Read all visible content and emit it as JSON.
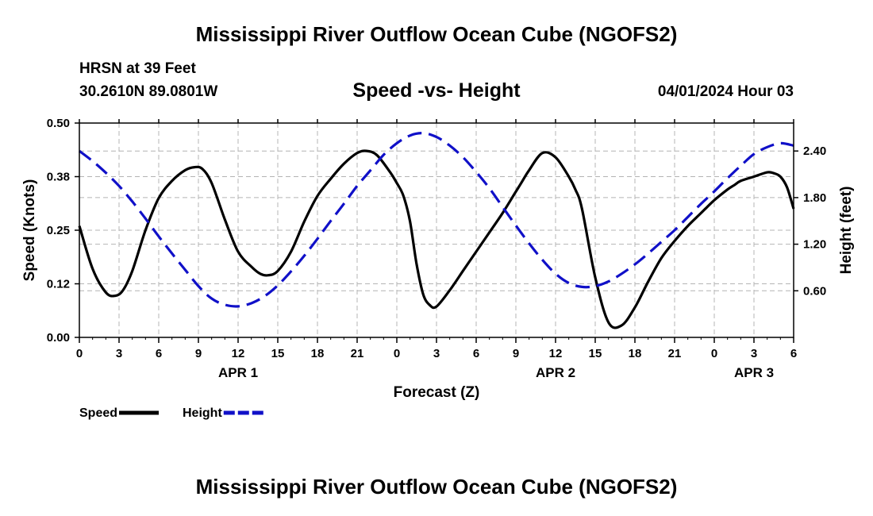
{
  "title": "Mississippi River Outflow Ocean Cube (NGOFS2)",
  "title_repeat": "Mississippi River Outflow Ocean Cube (NGOFS2)",
  "station": "HRSN at 39 Feet",
  "coordinates": "30.2610N  89.0801W",
  "subtitle": "Speed -vs- Height",
  "datetime": "04/01/2024 Hour 03",
  "colors": {
    "speed": "#000000",
    "height": "#1010c8",
    "grid": "#b4b4b4"
  },
  "chart_data": {
    "type": "line",
    "title": "Speed -vs- Height",
    "xlabel": "Forecast (Z)",
    "ylabel": "Speed (Knots)",
    "y2label": "Height (feet)",
    "xlim": [
      0,
      54
    ],
    "ylim": [
      0,
      0.5
    ],
    "y2lim": [
      0.0,
      2.76
    ],
    "x_ticks": [
      0,
      3,
      6,
      9,
      12,
      15,
      18,
      21,
      24,
      27,
      30,
      33,
      36,
      39,
      42,
      45,
      48,
      51,
      54
    ],
    "x_tick_labels": [
      "0",
      "3",
      "6",
      "9",
      "12",
      "15",
      "18",
      "21",
      "0",
      "3",
      "6",
      "9",
      "12",
      "15",
      "18",
      "21",
      "0",
      "3",
      "6"
    ],
    "date_labels": [
      {
        "x": 12,
        "label": "APR 1"
      },
      {
        "x": 36,
        "label": "APR 2"
      },
      {
        "x": 51,
        "label": "APR 3"
      }
    ],
    "y_ticks": [
      0,
      0.125,
      0.25,
      0.375,
      0.5
    ],
    "y_tick_labels": [
      "0.00",
      "0.12",
      "0.25",
      "0.38",
      "0.50"
    ],
    "y2_ticks": [
      0.6,
      1.2,
      1.8,
      2.4
    ],
    "y2_tick_labels": [
      "0.60",
      "1.20",
      "1.80",
      "2.40"
    ],
    "grid": true,
    "legend": [
      {
        "name": "Speed",
        "style": "solid"
      },
      {
        "name": "Height",
        "style": "dashed"
      }
    ],
    "series": [
      {
        "name": "Speed",
        "axis": "left",
        "style": "solid",
        "x": [
          0,
          1,
          2,
          2.7,
          3.3,
          4,
          5,
          6,
          7,
          8,
          8.7,
          9.3,
          10,
          11,
          12,
          13,
          13.7,
          14.3,
          15,
          16,
          17,
          18,
          19,
          20,
          21,
          21.7,
          22.5,
          23.5,
          24,
          24.5,
          25,
          25.5,
          26,
          26.5,
          27,
          28,
          29,
          30,
          31,
          32,
          33,
          33.5,
          34,
          35,
          36,
          37,
          37.5,
          38,
          39,
          40,
          41,
          42,
          43,
          44,
          45,
          46,
          47,
          48,
          49,
          49.5,
          50,
          51,
          52,
          52.5,
          53,
          53.5,
          54
        ],
        "values": [
          0.26,
          0.16,
          0.105,
          0.097,
          0.11,
          0.155,
          0.25,
          0.325,
          0.365,
          0.39,
          0.397,
          0.393,
          0.36,
          0.275,
          0.2,
          0.165,
          0.148,
          0.145,
          0.155,
          0.2,
          0.27,
          0.33,
          0.37,
          0.405,
          0.43,
          0.435,
          0.425,
          0.385,
          0.36,
          0.33,
          0.27,
          0.17,
          0.1,
          0.075,
          0.072,
          0.11,
          0.155,
          0.2,
          0.245,
          0.29,
          0.34,
          0.365,
          0.39,
          0.43,
          0.42,
          0.375,
          0.345,
          0.3,
          0.14,
          0.035,
          0.028,
          0.07,
          0.13,
          0.185,
          0.225,
          0.26,
          0.29,
          0.32,
          0.345,
          0.355,
          0.365,
          0.375,
          0.385,
          0.383,
          0.375,
          0.35,
          0.3
        ]
      },
      {
        "name": "Height",
        "axis": "right",
        "style": "dashed",
        "x": [
          0,
          1,
          2,
          3,
          4,
          5,
          6,
          7,
          8,
          9,
          10,
          11,
          12,
          13,
          14,
          15,
          16,
          17,
          18,
          19,
          20,
          21,
          22,
          23,
          24,
          25,
          26,
          27,
          28,
          29,
          30,
          31,
          32,
          33,
          34,
          35,
          36,
          37,
          38,
          39,
          40,
          41,
          42,
          43,
          44,
          45,
          46,
          47,
          48,
          49,
          50,
          51,
          52,
          53,
          54
        ],
        "values": [
          2.4,
          2.27,
          2.12,
          1.95,
          1.75,
          1.53,
          1.3,
          1.08,
          0.87,
          0.66,
          0.5,
          0.42,
          0.4,
          0.44,
          0.53,
          0.67,
          0.85,
          1.05,
          1.27,
          1.5,
          1.72,
          1.95,
          2.15,
          2.35,
          2.5,
          2.6,
          2.63,
          2.58,
          2.47,
          2.32,
          2.13,
          1.92,
          1.68,
          1.44,
          1.21,
          1,
          0.82,
          0.7,
          0.65,
          0.66,
          0.72,
          0.82,
          0.94,
          1.08,
          1.23,
          1.38,
          1.55,
          1.72,
          1.88,
          2.05,
          2.21,
          2.36,
          2.45,
          2.5,
          2.47
        ]
      }
    ]
  }
}
